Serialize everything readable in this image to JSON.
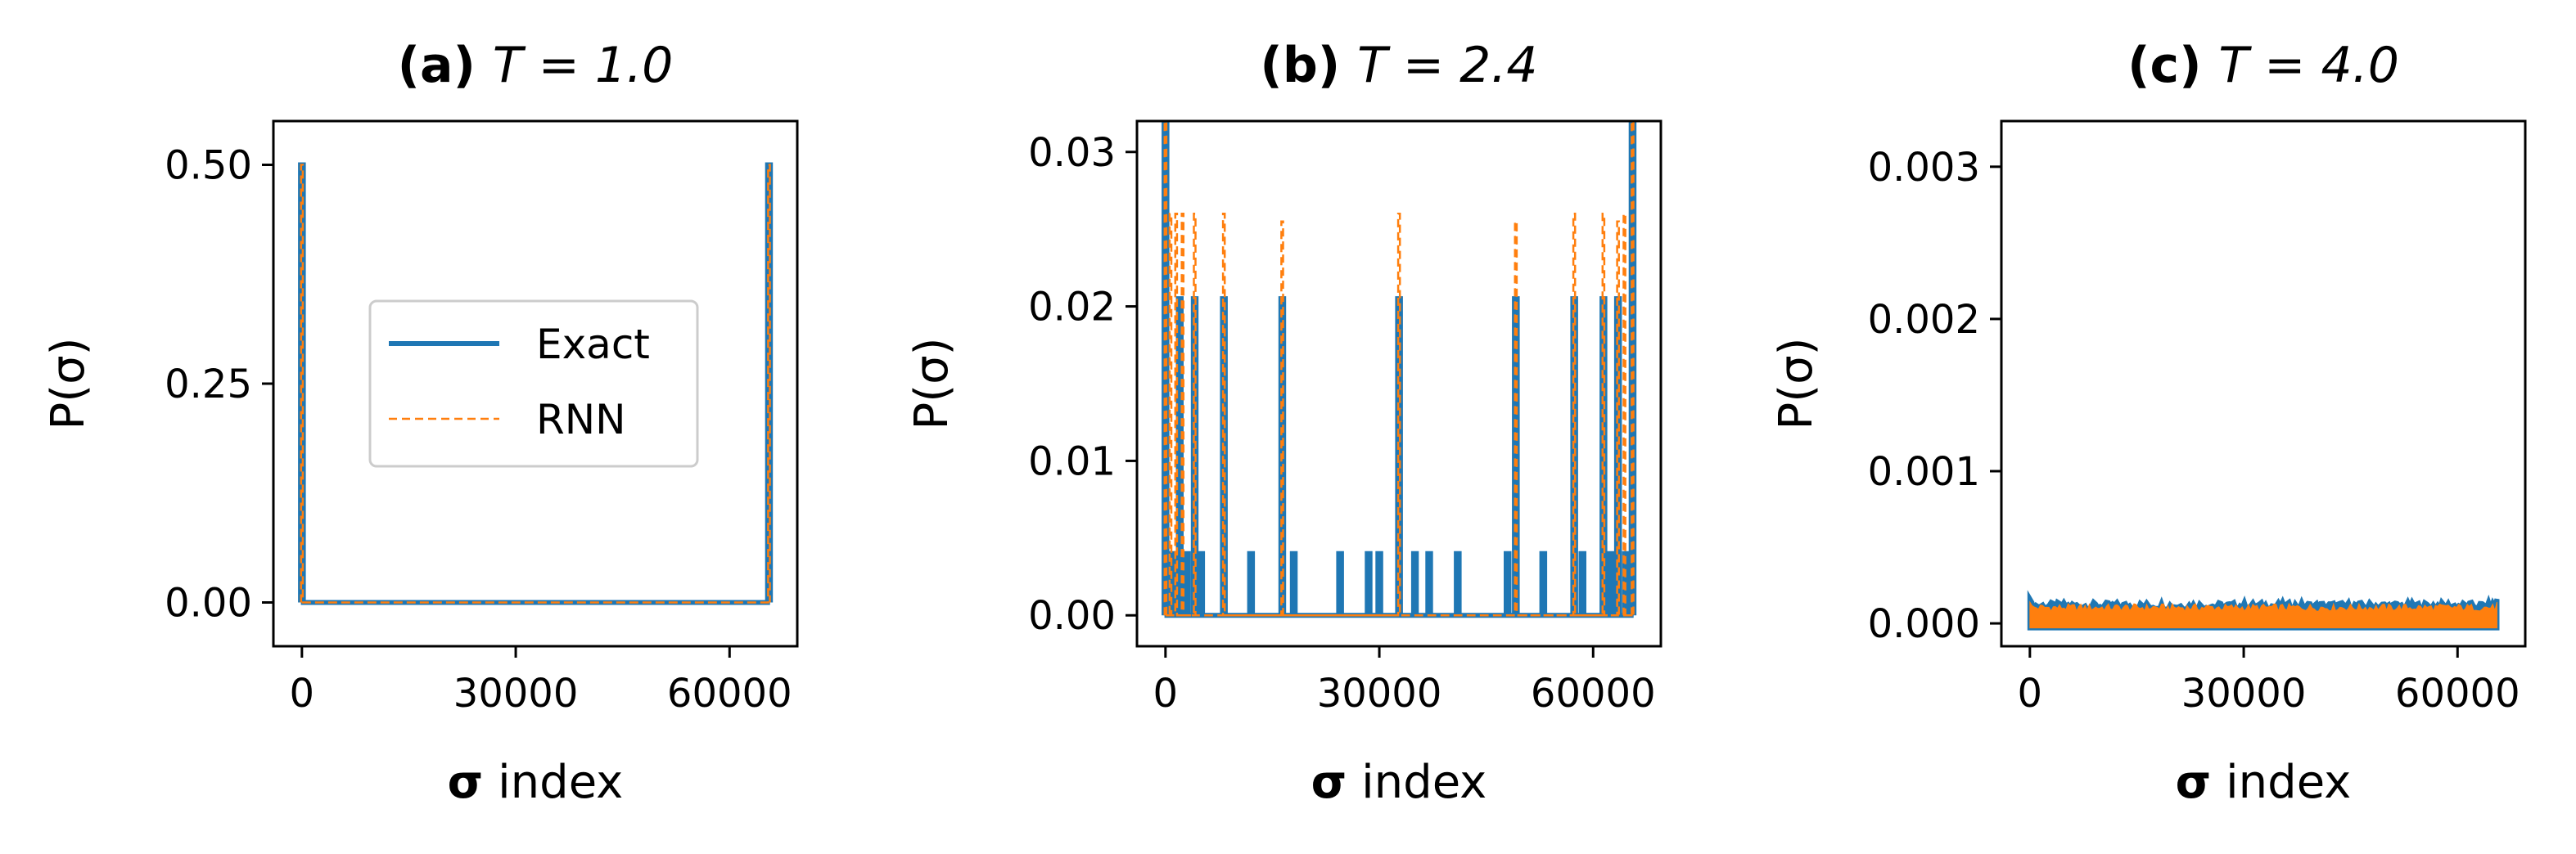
{
  "colors": {
    "exact": "#1f77b4",
    "rnn": "#ff7f0e"
  },
  "chart_data": [
    {
      "type": "line",
      "title_bold": "(a)",
      "title_rest": "T = 1.0",
      "xlabel_bold": "σ",
      "xlabel_rest": " index",
      "ylabel": "P(σ)",
      "xlim": [
        -4000,
        69500
      ],
      "ylim": [
        -0.05,
        0.55
      ],
      "xticks": [
        0,
        30000,
        60000
      ],
      "xtick_labels": [
        "0",
        "30000",
        "60000"
      ],
      "yticks": [
        0,
        0.25,
        0.5
      ],
      "ytick_labels": [
        "0.00",
        "0.25",
        "0.50"
      ],
      "legend": {
        "entries": [
          "Exact",
          "RNN"
        ],
        "placement": "center"
      },
      "series": [
        {
          "name": "Exact",
          "style": "solid",
          "baseline": 0.0,
          "spikes": [
            [
              0,
              0.5
            ],
            [
              65535,
              0.5
            ]
          ]
        },
        {
          "name": "RNN",
          "style": "dashed",
          "baseline": 0.0,
          "spikes": [
            [
              0,
              0.5
            ],
            [
              65535,
              0.5
            ]
          ]
        }
      ]
    },
    {
      "type": "line",
      "title_bold": "(b)",
      "title_rest": "T = 2.4",
      "xlabel_bold": "σ",
      "xlabel_rest": " index",
      "ylabel": "P(σ)",
      "xlim": [
        -4000,
        69500
      ],
      "ylim": [
        -0.002,
        0.032
      ],
      "xticks": [
        0,
        30000,
        60000
      ],
      "xtick_labels": [
        "0",
        "30000",
        "60000"
      ],
      "yticks": [
        0,
        0.01,
        0.02,
        0.03
      ],
      "ytick_labels": [
        "0.00",
        "0.01",
        "0.02",
        "0.03"
      ],
      "series": [
        {
          "name": "Exact",
          "style": "solid",
          "baseline": 0.0,
          "spikes": [
            [
              0,
              0.032
            ],
            [
              1000,
              0.004
            ],
            [
              2000,
              0.0205
            ],
            [
              3000,
              0.004
            ],
            [
              4096,
              0.0205
            ],
            [
              5000,
              0.004
            ],
            [
              8192,
              0.0205
            ],
            [
              12000,
              0.004
            ],
            [
              16384,
              0.0205
            ],
            [
              18000,
              0.004
            ],
            [
              24500,
              0.004
            ],
            [
              28500,
              0.004
            ],
            [
              30000,
              0.004
            ],
            [
              32768,
              0.0205
            ],
            [
              35000,
              0.004
            ],
            [
              37000,
              0.004
            ],
            [
              41000,
              0.004
            ],
            [
              48000,
              0.004
            ],
            [
              49152,
              0.0205
            ],
            [
              53000,
              0.004
            ],
            [
              57344,
              0.0205
            ],
            [
              58500,
              0.004
            ],
            [
              61440,
              0.0205
            ],
            [
              62500,
              0.004
            ],
            [
              63488,
              0.0205
            ],
            [
              64600,
              0.004
            ],
            [
              65535,
              0.032
            ]
          ]
        },
        {
          "name": "RNN",
          "style": "dashed",
          "baseline": 0.0,
          "spikes": [
            [
              0,
              0.032
            ],
            [
              700,
              0.026
            ],
            [
              1500,
              0.026
            ],
            [
              2400,
              0.026
            ],
            [
              4096,
              0.026
            ],
            [
              8192,
              0.026
            ],
            [
              16384,
              0.0255
            ],
            [
              32768,
              0.026
            ],
            [
              49152,
              0.0255
            ],
            [
              57344,
              0.026
            ],
            [
              61440,
              0.026
            ],
            [
              63488,
              0.0255
            ],
            [
              64400,
              0.026
            ],
            [
              65535,
              0.032
            ]
          ]
        }
      ]
    },
    {
      "type": "line",
      "title_bold": "(c)",
      "title_rest": "T = 4.0",
      "xlabel_bold": "σ",
      "xlabel_rest": " index",
      "ylabel": "P(σ)",
      "xlim": [
        -4000,
        69500
      ],
      "ylim": [
        -0.00015,
        0.0033
      ],
      "xticks": [
        0,
        30000,
        60000
      ],
      "xtick_labels": [
        "0",
        "30000",
        "60000"
      ],
      "yticks": [
        0,
        0.001,
        0.002,
        0.003
      ],
      "ytick_labels": [
        "0.000",
        "0.001",
        "0.002",
        "0.003"
      ],
      "series": [
        {
          "name": "Exact",
          "style": "band",
          "band": [
            3e-05,
            0.00012
          ],
          "edges": 0.00016
        },
        {
          "name": "RNN",
          "style": "band",
          "band": [
            3e-05,
            0.00011
          ],
          "edges": 0.00014
        }
      ]
    }
  ]
}
